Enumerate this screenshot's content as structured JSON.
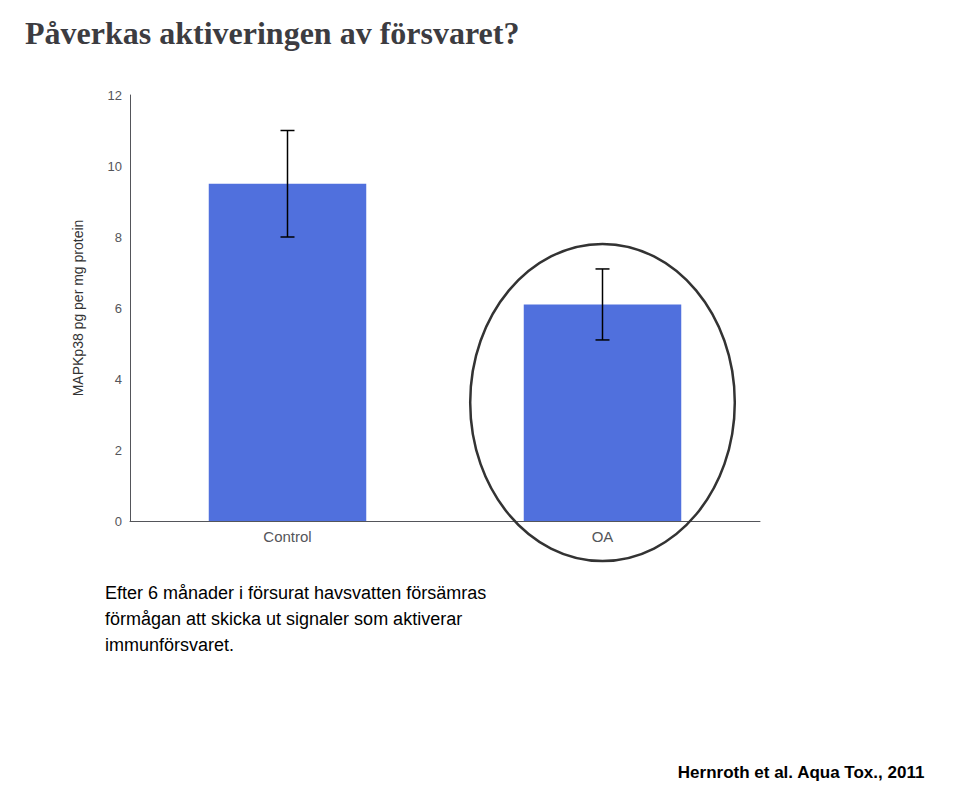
{
  "chart_data": {
    "type": "bar",
    "title": "Påverkas aktiveringen av försvaret?",
    "categories": [
      "Control",
      "OA"
    ],
    "values": [
      9.5,
      6.1
    ],
    "errors": [
      1.5,
      1.0
    ],
    "ylabel": "MAPKp38 pg per mg protein",
    "ylim": [
      0,
      12
    ],
    "yticks": [
      0,
      2,
      4,
      6,
      8,
      10,
      12
    ],
    "grid": false,
    "annotations": [
      "Efter 6 månader i försurat havsvatten försämras\nförmågan att skicka ut signaler som aktiverar\nimmunförsvaret.",
      "Hernroth et al. Aqua Tox., 2011"
    ]
  }
}
